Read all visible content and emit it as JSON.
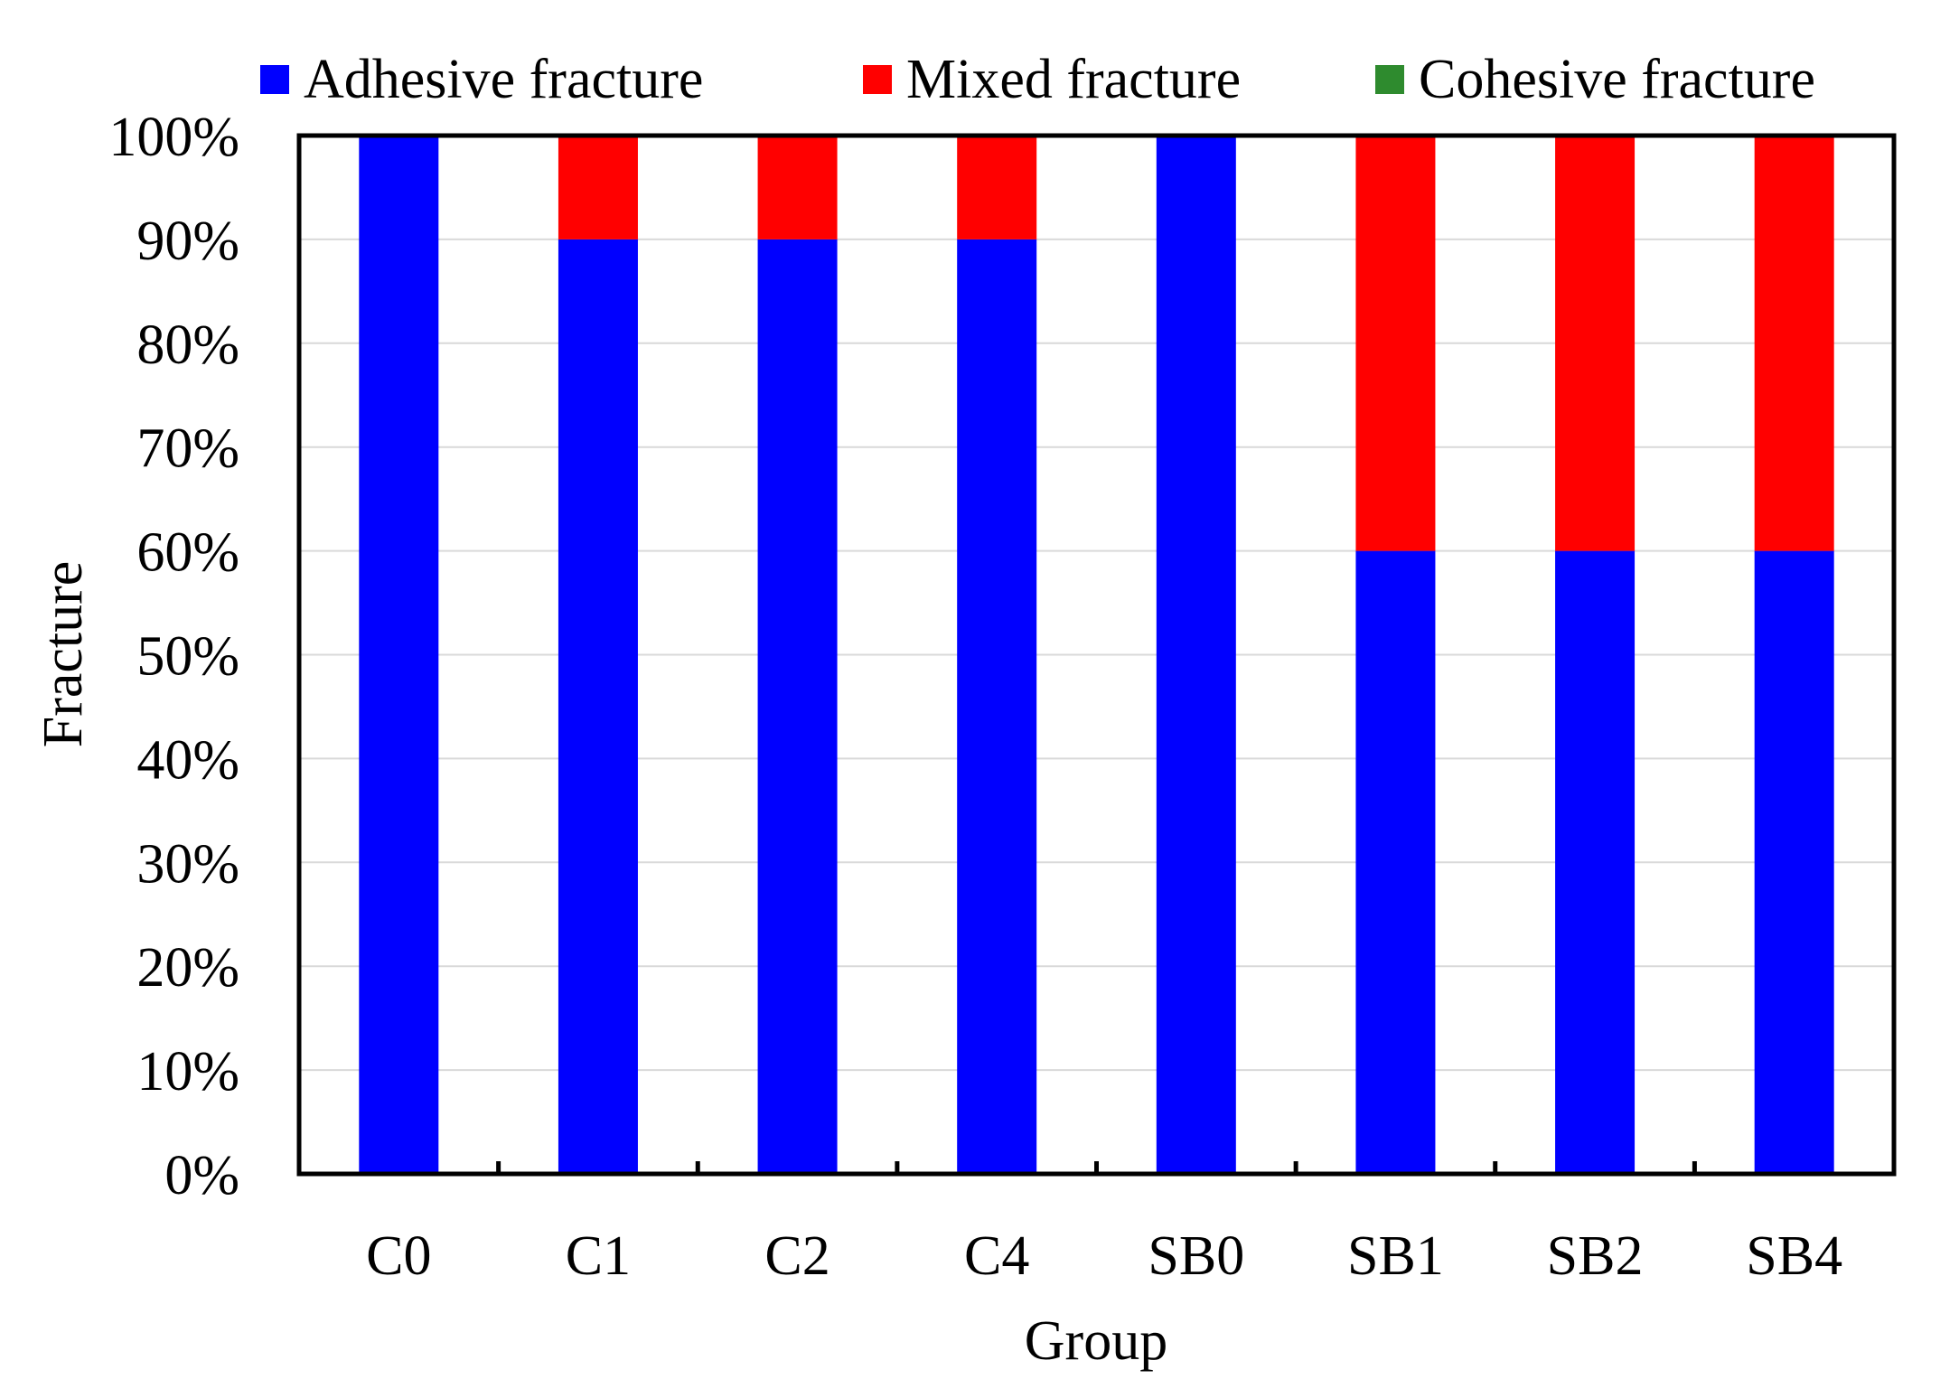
{
  "chart_data": {
    "type": "bar",
    "stacked": true,
    "categories": [
      "C0",
      "C1",
      "C2",
      "C4",
      "SB0",
      "SB1",
      "SB2",
      "SB4"
    ],
    "series": [
      {
        "name": "Adhesive fracture",
        "color": "#0000FF",
        "values": [
          100,
          90,
          90,
          90,
          100,
          60,
          60,
          60
        ]
      },
      {
        "name": "Mixed fracture",
        "color": "#FF0000",
        "values": [
          0,
          10,
          10,
          10,
          0,
          40,
          40,
          40
        ]
      },
      {
        "name": "Cohesive fracture",
        "color": "#2E8B2E",
        "values": [
          0,
          0,
          0,
          0,
          0,
          0,
          0,
          0
        ]
      }
    ],
    "xlabel": "Group",
    "ylabel": "Fracture",
    "ylim": [
      0,
      100
    ],
    "yticks": [
      "0%",
      "10%",
      "20%",
      "30%",
      "40%",
      "50%",
      "60%",
      "70%",
      "80%",
      "90%",
      "100%"
    ],
    "grid": true,
    "legend_position": "top"
  }
}
